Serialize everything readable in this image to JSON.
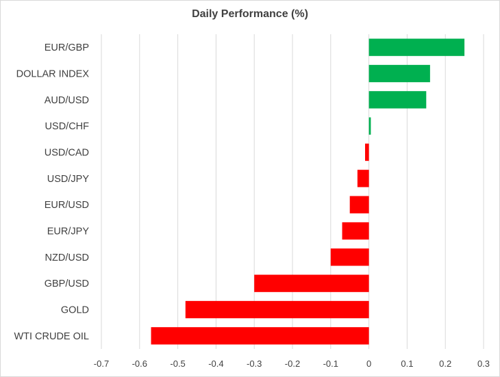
{
  "chart_data": {
    "type": "bar",
    "orientation": "horizontal",
    "title": "Daily Performance (%)",
    "xlabel": "",
    "ylabel": "",
    "xlim": [
      -0.7,
      0.3
    ],
    "x_ticks": [
      "-0.7",
      "-0.6",
      "-0.5",
      "-0.4",
      "-0.3",
      "-0.2",
      "-0.1",
      "0",
      "0.1",
      "0.2",
      "0.3"
    ],
    "x_tick_values": [
      -0.7,
      -0.6,
      -0.5,
      -0.4,
      -0.3,
      -0.2,
      -0.1,
      0,
      0.1,
      0.2,
      0.3
    ],
    "grid": true,
    "legend": "none",
    "categories": [
      "EUR/GBP",
      "DOLLAR INDEX",
      "AUD/USD",
      "USD/CHF",
      "USD/CAD",
      "USD/JPY",
      "EUR/USD",
      "EUR/JPY",
      "NZD/USD",
      "GBP/USD",
      "GOLD",
      "WTI CRUDE OIL"
    ],
    "values": [
      0.25,
      0.16,
      0.15,
      0.005,
      -0.01,
      -0.03,
      -0.05,
      -0.07,
      -0.1,
      -0.3,
      -0.48,
      -0.57
    ],
    "colors": {
      "positive": "#00b050",
      "negative": "#ff0000",
      "grid": "#d9d9d9",
      "text": "#404040"
    }
  }
}
